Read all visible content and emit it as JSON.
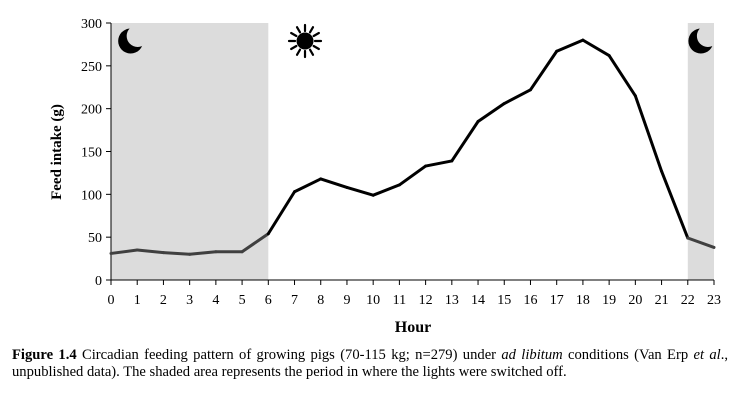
{
  "chart_data": {
    "type": "line",
    "xlabel": "Hour",
    "ylabel": "Feed intake (g)",
    "x": [
      0,
      1,
      2,
      3,
      4,
      5,
      6,
      7,
      8,
      9,
      10,
      11,
      12,
      13,
      14,
      15,
      16,
      17,
      18,
      19,
      20,
      21,
      22,
      23
    ],
    "values": [
      31,
      35,
      32,
      30,
      33,
      33,
      54,
      103,
      118,
      108,
      99,
      111,
      133,
      139,
      185,
      206,
      222,
      267,
      280,
      262,
      215,
      127,
      49,
      38
    ],
    "ylim": [
      0,
      300
    ],
    "yticks": [
      0,
      50,
      100,
      150,
      200,
      250,
      300
    ],
    "xlim": [
      0,
      23
    ],
    "grid": false,
    "lights_off_periods": [
      [
        0,
        6
      ],
      [
        22,
        23
      ]
    ],
    "colors": {
      "line_dark": "#000000",
      "line_shaded": "#404040",
      "shade": "#dcdcdc"
    },
    "icons": [
      {
        "name": "moon-icon",
        "at_hour": 0.75
      },
      {
        "name": "sun-icon",
        "at_hour": 7.4
      },
      {
        "name": "moon-icon",
        "at_hour": 22.5
      }
    ]
  },
  "caption": {
    "label": "Figure 1.4",
    "text_part1": " Circadian feeding pattern of growing pigs (70-115 kg; n=279) under ",
    "italic1": "ad libitum",
    "text_part2": " conditions (Van Erp ",
    "italic2": "et al",
    "text_part3": "., unpublished data). The shaded area represents the period in where the lights were switched off."
  }
}
